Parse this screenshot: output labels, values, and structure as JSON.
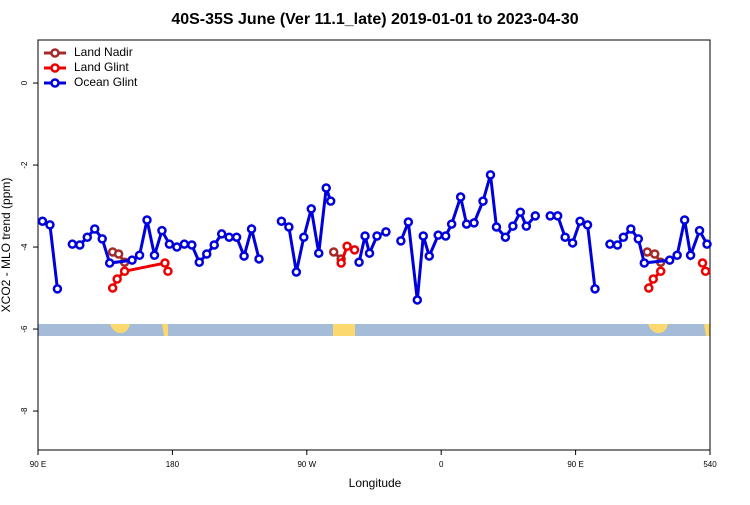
{
  "chart_data": {
    "type": "line",
    "title": "40S-35S June (Ver 11.1_late)   2019-01-01 to 2023-04-30",
    "x_label": "Longitude",
    "y_label": "XCO2 - MLO trend (ppm)",
    "xlim": [
      90,
      540
    ],
    "ylim": [
      -8.95,
      1.05
    ],
    "xticks": [
      {
        "value": 90,
        "label": "90 E"
      },
      180,
      {
        "value": 270,
        "label": "90 W"
      },
      {
        "value": 360,
        "label": "0"
      },
      {
        "value": 450,
        "label": "90 E"
      },
      540
    ],
    "yticks": [
      0,
      -2,
      -4,
      -6,
      -8
    ],
    "legend": "top-left",
    "series": [
      {
        "name": "Land Nadir",
        "color": "#a52a2a",
        "x": [
          140,
          144,
          148,
          null,
          288,
          293,
          null,
          498,
          503,
          507
        ],
        "values": [
          -4.12,
          -4.17,
          -4.37,
          null,
          -4.12,
          -4.29,
          null,
          -4.12,
          -4.17,
          -4.37
        ]
      },
      {
        "name": "Land Glint",
        "color": "#ee0000",
        "x": [
          140,
          143,
          148,
          175,
          177,
          null,
          293,
          297,
          302,
          null,
          499,
          502,
          507,
          null,
          535,
          537
        ],
        "values": [
          -5.0,
          -4.78,
          -4.59,
          -4.39,
          -4.59,
          null,
          -4.39,
          -3.98,
          -4.07,
          null,
          -5.0,
          -4.78,
          -4.59,
          null,
          -4.39,
          -4.59
        ]
      },
      {
        "name": "Ocean Glint",
        "color": "#0000dd",
        "x": [
          93,
          98,
          103,
          null,
          113,
          118,
          123,
          128,
          133,
          138,
          153,
          158,
          163,
          168,
          173,
          178,
          183,
          188,
          193,
          198,
          203,
          208,
          213,
          218,
          223,
          228,
          233,
          238,
          null,
          253,
          258,
          263,
          268,
          273,
          278,
          283,
          286,
          null,
          305,
          309,
          312,
          317,
          323,
          null,
          333,
          338,
          344,
          348,
          352,
          358,
          363,
          367,
          373,
          377,
          382,
          388,
          393,
          397,
          403,
          408,
          413,
          417,
          423,
          null,
          433,
          438,
          443,
          448,
          453,
          458,
          463,
          null,
          473,
          478,
          482,
          487,
          492,
          496,
          513,
          518,
          523,
          527,
          533,
          538
        ],
        "values": [
          -3.37,
          -3.46,
          -5.02,
          null,
          -3.93,
          -3.95,
          -3.76,
          -3.56,
          -3.8,
          -4.39,
          -4.32,
          -4.2,
          -3.34,
          -4.2,
          -3.6,
          -3.93,
          -4.0,
          -3.93,
          -3.95,
          -4.37,
          -4.17,
          -3.95,
          -3.68,
          -3.76,
          -3.76,
          -4.22,
          -3.56,
          -4.29,
          null,
          -3.37,
          -3.51,
          -4.61,
          -3.76,
          -3.07,
          -4.15,
          -2.56,
          -2.88,
          null,
          -4.37,
          -3.73,
          -4.15,
          -3.73,
          -3.63,
          null,
          -3.85,
          -3.39,
          -5.29,
          -3.73,
          -4.22,
          -3.71,
          -3.73,
          -3.44,
          -2.78,
          -3.44,
          -3.41,
          -2.88,
          -2.24,
          -3.51,
          -3.76,
          -3.49,
          -3.15,
          -3.49,
          -3.24,
          null,
          -3.24,
          -3.24,
          -3.76,
          -3.9,
          -3.37,
          -3.46,
          -5.02,
          null,
          -3.93,
          -3.95,
          -3.76,
          -3.56,
          -3.8,
          -4.39,
          -4.32,
          -4.2,
          -3.34,
          -4.2,
          -3.6,
          -3.93
        ]
      }
    ]
  }
}
